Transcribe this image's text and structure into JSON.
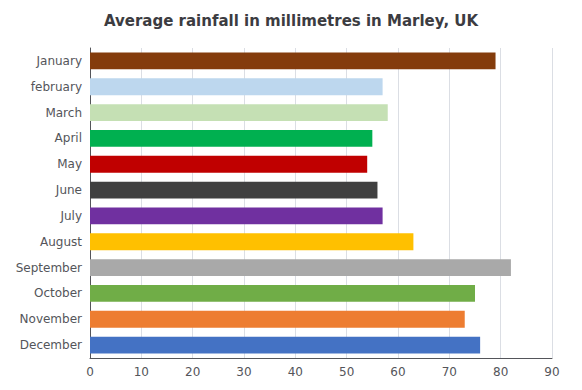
{
  "chart_data": {
    "type": "bar",
    "orientation": "horizontal",
    "title": "Average rainfall in millimetres in Marley, UK",
    "categories": [
      "January",
      "february",
      "March",
      "April",
      "May",
      "June",
      "July",
      "August",
      "September",
      "October",
      "November",
      "December"
    ],
    "values": [
      79,
      57,
      58,
      55,
      54,
      56,
      57,
      63,
      82,
      75,
      73,
      76
    ],
    "colors": [
      "#843C0C",
      "#BDD7EE",
      "#C5E0B4",
      "#00B050",
      "#C00000",
      "#404040",
      "#7030A0",
      "#FFC000",
      "#A9A9A9",
      "#70AD47",
      "#ED7D31",
      "#4472C4"
    ],
    "xlim": [
      0,
      90
    ],
    "xticks": [
      0,
      10,
      20,
      30,
      40,
      50,
      60,
      70,
      80,
      90
    ],
    "grid": true
  }
}
